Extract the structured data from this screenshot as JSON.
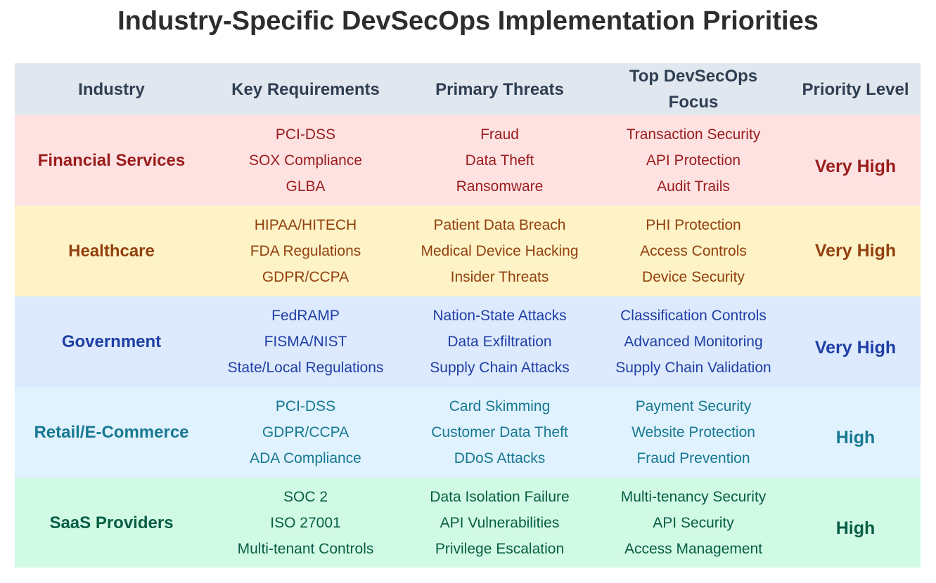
{
  "title": "Industry-Specific DevSecOps Implementation Priorities",
  "headers": [
    "Industry",
    "Key Requirements",
    "Primary Threats",
    "Top DevSecOps Focus",
    "Priority Level"
  ],
  "rows": [
    {
      "industry": "Financial Services",
      "requirements": [
        "PCI-DSS",
        "SOX Compliance",
        "GLBA"
      ],
      "threats": [
        "Fraud",
        "Data Theft",
        "Ransomware"
      ],
      "focus": [
        "Transaction Security",
        "API Protection",
        "Audit Trails"
      ],
      "priority": "Very High",
      "color": "#9b1c1c",
      "background": "#fee2e2"
    },
    {
      "industry": "Healthcare",
      "requirements": [
        "HIPAA/HITECH",
        "FDA Regulations",
        "GDPR/CCPA"
      ],
      "threats": [
        "Patient Data Breach",
        "Medical Device Hacking",
        "Insider Threats"
      ],
      "focus": [
        "PHI Protection",
        "Access Controls",
        "Device Security"
      ],
      "priority": "Very High",
      "color": "#93400f",
      "background": "#fdf3c6"
    },
    {
      "industry": "Government",
      "requirements": [
        "FedRAMP",
        "FISMA/NIST",
        "State/Local Regulations"
      ],
      "threats": [
        "Nation-State Attacks",
        "Data Exfiltration",
        "Supply Chain Attacks"
      ],
      "focus": [
        "Classification Controls",
        "Advanced Monitoring",
        "Supply Chain Validation"
      ],
      "priority": "Very High",
      "color": "#1e3fa5",
      "background": "#dde9fd"
    },
    {
      "industry": "Retail/E-Commerce",
      "requirements": [
        "PCI-DSS",
        "GDPR/CCPA",
        "ADA Compliance"
      ],
      "threats": [
        "Card Skimming",
        "Customer Data Theft",
        "DDoS Attacks"
      ],
      "focus": [
        "Payment Security",
        "Website Protection",
        "Fraud Prevention"
      ],
      "priority": "High",
      "color": "#177892",
      "background": "#e0f2fe"
    },
    {
      "industry": "SaaS Providers",
      "requirements": [
        "SOC 2",
        "ISO 27001",
        "Multi-tenant Controls"
      ],
      "threats": [
        "Data Isolation Failure",
        "API Vulnerabilities",
        "Privilege Escalation"
      ],
      "focus": [
        "Multi-tenancy Security",
        "API Security",
        "Access Management"
      ],
      "priority": "High",
      "color": "#075e45",
      "background": "#d1fae5"
    }
  ]
}
